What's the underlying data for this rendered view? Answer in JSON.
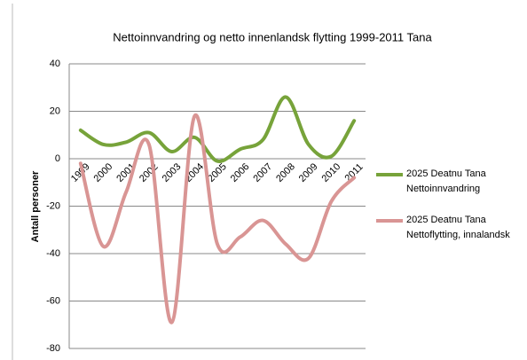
{
  "chart_data": {
    "type": "line",
    "title": "Nettoinnvandring og netto innenlandsk flytting 1999-2011 Tana",
    "y_label": "Antall personer",
    "categories": [
      "1999",
      "2000",
      "2001",
      "2002",
      "2003",
      "2004",
      "2005",
      "2006",
      "2007",
      "2008",
      "2009",
      "2010",
      "2011"
    ],
    "series": [
      {
        "name": "2025 Deatnu Tana Nettoinnvandring",
        "color": "#77a33a",
        "values": [
          12,
          6,
          7,
          11,
          3,
          9,
          -1,
          4,
          8,
          26,
          6,
          1,
          16
        ]
      },
      {
        "name": "2025 Deatnu Tana Nettoflytting, innalandsk",
        "color": "#d99594",
        "values": [
          -2,
          -37,
          -14,
          6,
          -69,
          18,
          -36,
          -33,
          -26,
          -36,
          -42,
          -18,
          -8
        ]
      }
    ],
    "ylim": [
      -80,
      40
    ],
    "yticks": [
      -80,
      -60,
      -40,
      -20,
      0,
      20,
      40
    ],
    "grid": true,
    "legend": "right"
  }
}
